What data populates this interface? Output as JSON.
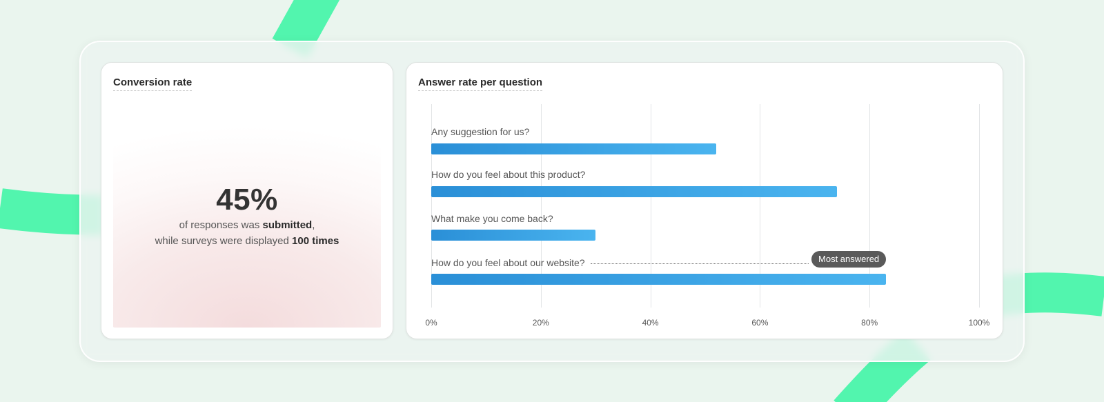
{
  "colors": {
    "background": "#eaf5ee",
    "ribbon": "#52f5ae",
    "bar_start": "#2a8fd7",
    "bar_end": "#4ab4ef",
    "badge": "#5a5a5a"
  },
  "conversion": {
    "title": "Conversion rate",
    "value": "45%",
    "line1_prefix": "of responses was ",
    "line1_bold": "submitted",
    "line1_suffix": ",",
    "line2_prefix": "while surveys were displayed ",
    "line2_bold": "100 times"
  },
  "answers": {
    "title": "Answer rate per question",
    "badge": "Most answered"
  },
  "chart_data": {
    "type": "bar",
    "orientation": "horizontal",
    "title": "Answer rate per question",
    "categories": [
      "Any suggestion for us?",
      "How do you feel about this product?",
      "What make you come back?",
      "How do you feel about our website?"
    ],
    "values": [
      52,
      74,
      30,
      83
    ],
    "unit": "%",
    "xlim": [
      0,
      100
    ],
    "ticks": [
      "0%",
      "20%",
      "40%",
      "60%",
      "80%",
      "100%"
    ],
    "tick_values": [
      0,
      20,
      40,
      60,
      80,
      100
    ],
    "grid": true,
    "annotation": {
      "category": "How do you feel about our website?",
      "text": "Most answered"
    }
  }
}
